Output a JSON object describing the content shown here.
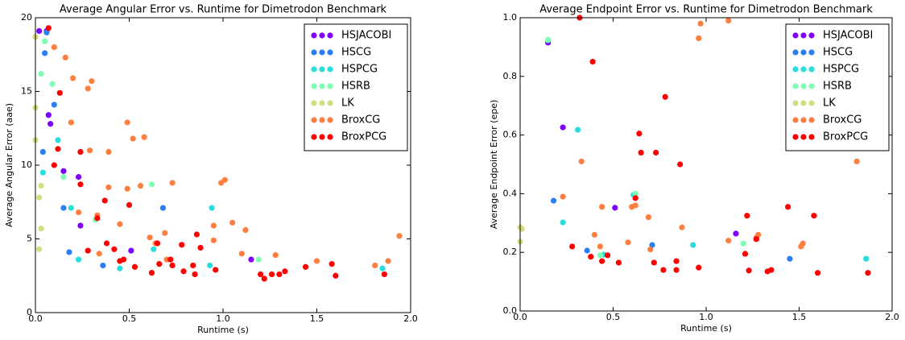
{
  "chart_data": [
    {
      "type": "scatter",
      "title": "Average Angular Error vs. Runtime for Dimetrodon Benchmark",
      "x_label": "Runtime (s)",
      "y_label": "Average Angular Error (aae)",
      "xlim": [
        0,
        2
      ],
      "ylim": [
        0,
        20
      ],
      "xticks": [
        {
          "value": 0,
          "label": "0.0"
        },
        {
          "value": 0.5,
          "label": "0.5"
        },
        {
          "value": 1,
          "label": "1.0"
        },
        {
          "value": 1.5,
          "label": "1.5"
        },
        {
          "value": 2,
          "label": "2.0"
        }
      ],
      "yticks": [
        0,
        5,
        10,
        15,
        20
      ],
      "legend": "upper right",
      "series": [
        {
          "name": "HSJACOBI",
          "color": "#8000ff",
          "x": [
            0.02,
            0.06,
            0.07,
            0.08,
            0.15,
            0.23,
            0.24,
            0.51,
            1.15
          ],
          "values": [
            19.1,
            19.1,
            13.4,
            12.8,
            9.6,
            9.2,
            5.9,
            4.2,
            3.6
          ]
        },
        {
          "name": "HSCG",
          "color": "#2c7ef7",
          "x": [
            0.06,
            0.05,
            0.1,
            0.04,
            0.15,
            0.18,
            0.36,
            0.68
          ],
          "values": [
            19.0,
            17.6,
            14.1,
            10.9,
            7.1,
            4.1,
            3.2,
            7.1
          ]
        },
        {
          "name": "HSPCG",
          "color": "#2adddd",
          "x": [
            0.04,
            0.12,
            0.19,
            0.23,
            0.45,
            0.63,
            0.94,
            0.93,
            1.85
          ],
          "values": [
            9.5,
            11.7,
            7.1,
            3.6,
            3.0,
            4.3,
            7.1,
            3.2,
            3.0
          ]
        },
        {
          "name": "HSRB",
          "color": "#80ffb4",
          "x": [
            0.03,
            0.05,
            0.09,
            0.15,
            0.32,
            0.62,
            1.19
          ],
          "values": [
            16.2,
            18.4,
            15.5,
            9.2,
            6.3,
            8.7,
            3.6
          ]
        },
        {
          "name": "LK",
          "color": "#d4dd80",
          "x": [
            0.0,
            0.0,
            0.0,
            0.03,
            0.02,
            0.03,
            0.02
          ],
          "values": [
            18.7,
            13.9,
            11.7,
            8.6,
            7.8,
            5.7,
            4.3
          ]
        },
        {
          "name": "BroxCG",
          "color": "#ff7f40",
          "x": [
            0.1,
            0.16,
            0.2,
            0.28,
            0.3,
            0.19,
            0.49,
            0.52,
            0.58,
            0.29,
            0.39,
            0.23,
            0.33,
            0.39,
            0.45,
            0.49,
            0.56,
            0.61,
            0.69,
            0.73,
            0.99,
            1.01,
            1.05,
            0.95,
            0.95,
            1.1,
            1.12,
            1.28,
            1.5,
            1.81,
            1.94,
            1.88,
            0.34,
            0.7,
            0.64
          ],
          "values": [
            18.0,
            17.3,
            15.9,
            15.2,
            15.7,
            12.9,
            12.9,
            11.8,
            11.9,
            11.0,
            10.9,
            6.8,
            6.6,
            8.5,
            6.0,
            8.4,
            8.6,
            5.1,
            5.4,
            8.8,
            8.8,
            9.0,
            6.1,
            5.9,
            4.9,
            4.0,
            5.6,
            3.9,
            3.5,
            3.2,
            5.2,
            3.5,
            4.0,
            3.6,
            4.7
          ]
        },
        {
          "name": "BroxPCG",
          "color": "#ff0000",
          "x": [
            0.07,
            0.13,
            0.12,
            0.1,
            0.24,
            0.24,
            0.37,
            0.5,
            0.33,
            0.38,
            0.42,
            0.47,
            0.53,
            0.45,
            0.62,
            0.65,
            0.66,
            0.72,
            0.73,
            0.78,
            0.79,
            0.84,
            0.85,
            0.86,
            0.88,
            0.96,
            1.2,
            1.22,
            1.26,
            1.3,
            1.33,
            1.44,
            1.58,
            1.6,
            1.86,
            0.28
          ],
          "values": [
            19.3,
            14.9,
            11.1,
            10.0,
            10.9,
            8.7,
            7.6,
            7.3,
            6.4,
            4.7,
            4.3,
            3.6,
            3.1,
            3.5,
            2.7,
            4.7,
            3.3,
            3.6,
            3.2,
            4.6,
            2.8,
            3.2,
            2.6,
            5.3,
            4.4,
            2.9,
            2.6,
            2.3,
            2.6,
            2.6,
            2.8,
            3.1,
            3.3,
            2.5,
            2.6,
            4.2
          ]
        }
      ]
    },
    {
      "type": "scatter",
      "title": "Average Endpoint Error vs. Runtime for Dimetrodon Benchmark",
      "x_label": "Runtime (s)",
      "y_label": "Average Endpoint Error (epe)",
      "xlim": [
        0,
        2
      ],
      "ylim": [
        0,
        1
      ],
      "xticks": [
        {
          "value": 0,
          "label": "0.0"
        },
        {
          "value": 0.5,
          "label": "0.5"
        },
        {
          "value": 1,
          "label": "1.0"
        },
        {
          "value": 1.5,
          "label": "1.5"
        },
        {
          "value": 2,
          "label": "2.0"
        }
      ],
      "yticks": [
        {
          "value": 0,
          "label": "0.0"
        },
        {
          "value": 0.2,
          "label": "0.2"
        },
        {
          "value": 0.4,
          "label": "0.4"
        },
        {
          "value": 0.6,
          "label": "0.6"
        },
        {
          "value": 0.8,
          "label": "0.8"
        },
        {
          "value": 1,
          "label": "1.0"
        }
      ],
      "legend": "upper right",
      "series": [
        {
          "name": "HSJACOBI",
          "color": "#8000ff",
          "x": [
            0.15,
            0.23,
            0.51,
            1.16
          ],
          "values": [
            0.915,
            0.626,
            0.352,
            0.264
          ]
        },
        {
          "name": "HSCG",
          "color": "#2c7ef7",
          "x": [
            0.18,
            0.36,
            0.71,
            1.45
          ],
          "values": [
            0.376,
            0.206,
            0.225,
            0.178
          ]
        },
        {
          "name": "HSPCG",
          "color": "#2adddd",
          "x": [
            0.15,
            0.31,
            0.23,
            0.45,
            0.93,
            1.86,
            0.61
          ],
          "values": [
            0.923,
            0.618,
            0.302,
            0.192,
            0.225,
            0.178,
            0.396
          ]
        },
        {
          "name": "HSRB",
          "color": "#80ffb4",
          "x": [
            0.15,
            0.62,
            1.2,
            0.43
          ],
          "values": [
            0.925,
            0.4,
            0.23,
            0.19
          ]
        },
        {
          "name": "LK",
          "color": "#d4dd80",
          "x": [
            0.0,
            0.01,
            0.0
          ],
          "values": [
            0.285,
            0.28,
            0.236
          ]
        },
        {
          "name": "BroxCG",
          "color": "#ff7f40",
          "x": [
            0.33,
            0.23,
            0.44,
            0.4,
            0.58,
            0.62,
            0.69,
            0.7,
            0.87,
            0.96,
            0.97,
            1.12,
            1.12,
            1.27,
            1.28,
            1.51,
            1.52,
            1.81,
            0.6,
            0.43
          ],
          "values": [
            0.51,
            0.39,
            0.355,
            0.26,
            0.234,
            0.36,
            0.32,
            0.21,
            0.285,
            0.93,
            0.98,
            0.99,
            0.24,
            0.25,
            0.26,
            0.22,
            0.23,
            0.51,
            0.355,
            0.22
          ]
        },
        {
          "name": "BroxPCG",
          "color": "#ff0000",
          "x": [
            0.32,
            0.39,
            0.78,
            0.64,
            0.65,
            0.73,
            0.86,
            0.62,
            0.28,
            0.38,
            0.44,
            0.47,
            0.53,
            0.72,
            0.77,
            0.84,
            0.84,
            0.96,
            1.22,
            1.21,
            1.27,
            1.23,
            1.33,
            1.35,
            1.44,
            1.58,
            1.6,
            1.87
          ],
          "values": [
            1.0,
            0.85,
            0.73,
            0.605,
            0.54,
            0.54,
            0.5,
            0.385,
            0.22,
            0.185,
            0.17,
            0.19,
            0.165,
            0.165,
            0.14,
            0.17,
            0.14,
            0.148,
            0.325,
            0.195,
            0.245,
            0.138,
            0.135,
            0.14,
            0.355,
            0.325,
            0.13,
            0.13
          ]
        }
      ]
    }
  ]
}
